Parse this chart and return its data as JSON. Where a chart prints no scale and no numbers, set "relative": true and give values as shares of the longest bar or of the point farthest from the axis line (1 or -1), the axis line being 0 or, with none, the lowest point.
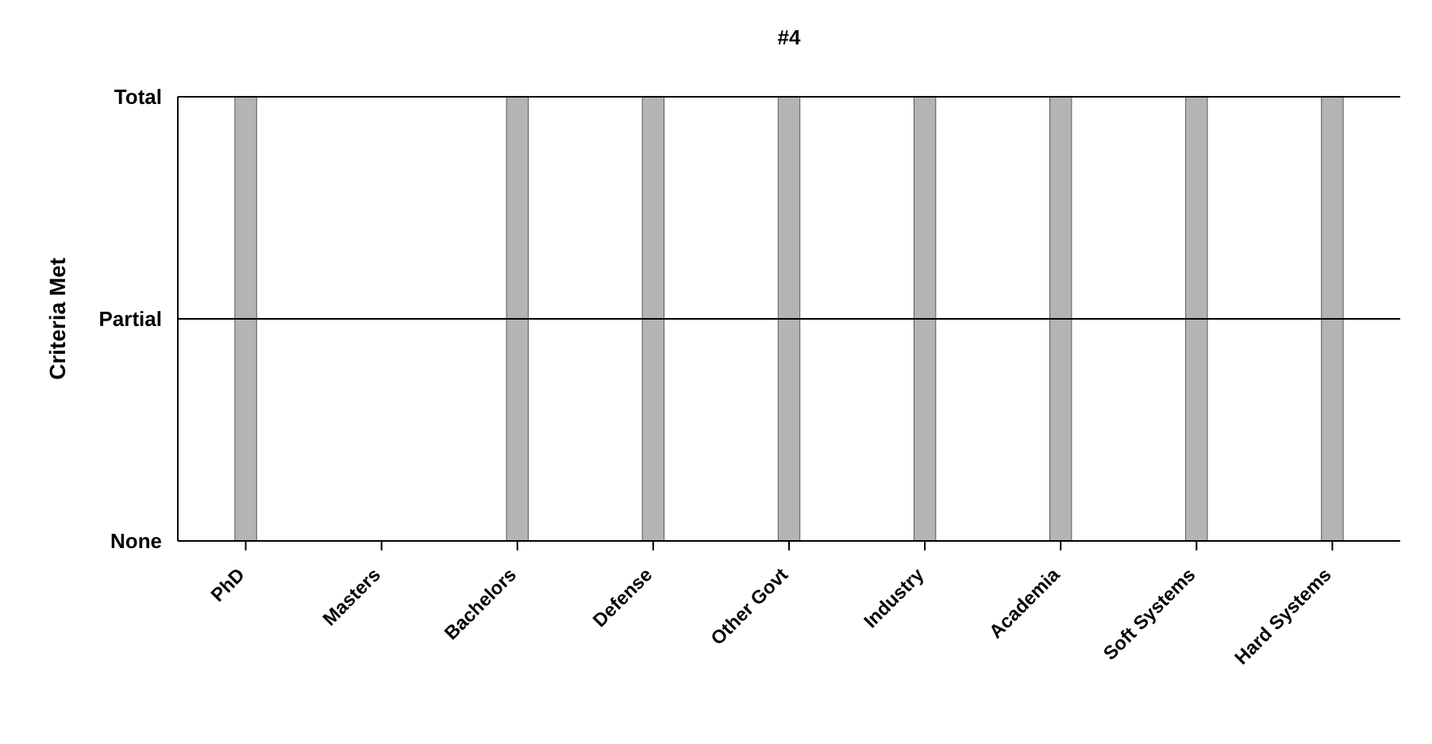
{
  "chart_data": {
    "type": "bar",
    "title": "#4",
    "ylabel": "Criteria Met",
    "categories": [
      "PhD",
      "Masters",
      "Bachelors",
      "Defense",
      "Other Govt",
      "Industry",
      "Academia",
      "Soft Systems",
      "Hard Systems"
    ],
    "values": [
      1,
      0,
      1,
      1,
      1,
      1,
      1,
      1,
      1
    ],
    "relative": true,
    "color": "#b4b4b4",
    "annotations": [
      "None"
    ],
    "ref_lines": [
      {
        "axis": "y",
        "value": 0.5,
        "label": "Partial",
        "color": "#000000"
      },
      {
        "axis": "y",
        "value": 1,
        "label": "Total",
        "color": "#000000"
      }
    ],
    "legend": false
  }
}
